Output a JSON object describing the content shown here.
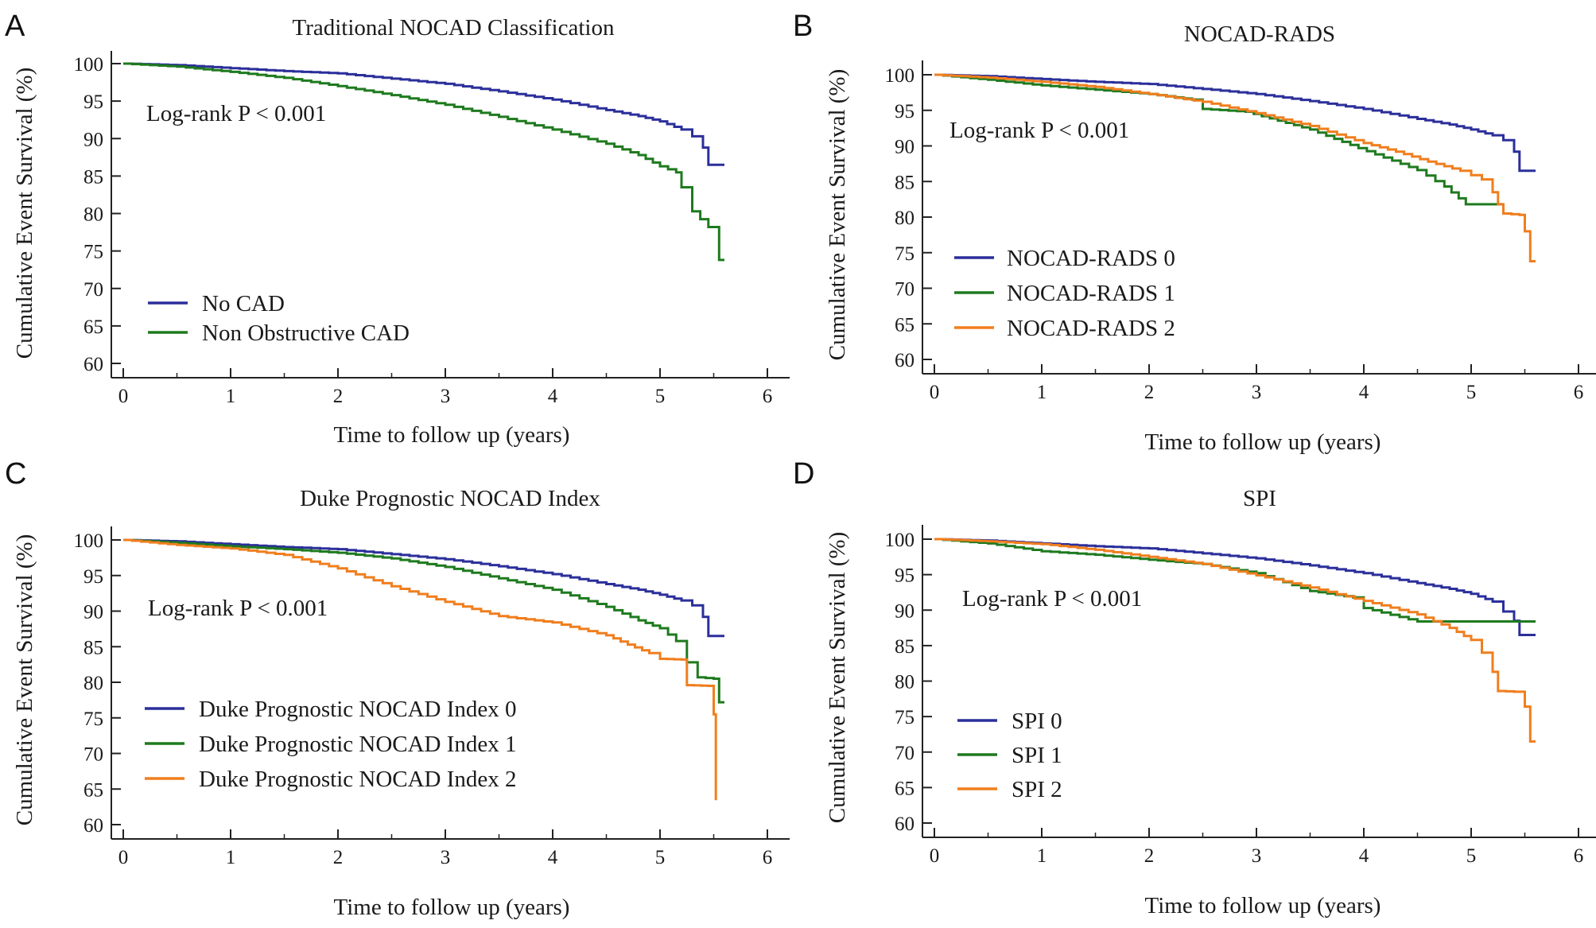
{
  "chart_data": [
    {
      "type": "line",
      "panel": "A",
      "title": "Traditional NOCAD Classification",
      "xlabel": "Time to follow up (years)",
      "ylabel": "Cumulative Event Survival (%)",
      "xlim": [
        0,
        6
      ],
      "ylim": [
        60,
        100
      ],
      "xticks": [
        0,
        1,
        2,
        3,
        4,
        5,
        6
      ],
      "yticks": [
        60,
        65,
        70,
        75,
        80,
        85,
        90,
        95,
        100
      ],
      "annotation": "Log-rank P < 0.001",
      "legend_position": "bottom-left",
      "series": [
        {
          "name": "No CAD",
          "color": "#2b2f9a",
          "x": [
            0,
            0.5,
            1,
            1.5,
            2,
            2.5,
            3,
            3.5,
            4,
            4.5,
            4.8,
            5,
            5.2,
            5.3,
            5.4,
            5.45,
            5.6
          ],
          "y": [
            100,
            99.8,
            99.4,
            99,
            98.7,
            98,
            97.3,
            96.3,
            95.2,
            93.8,
            93,
            92.3,
            91.2,
            90.3,
            88.8,
            86.5,
            86.5
          ]
        },
        {
          "name": "Non Obstructive CAD",
          "color": "#1e7a1e",
          "x": [
            0,
            0.5,
            1,
            1.5,
            2,
            2.5,
            3,
            3.5,
            4,
            4.5,
            4.8,
            5,
            5.15,
            5.2,
            5.3,
            5.45,
            5.55,
            5.6
          ],
          "y": [
            100,
            99.6,
            98.9,
            98.1,
            97,
            95.8,
            94.5,
            92.9,
            91.2,
            89.3,
            87.8,
            86.3,
            85.5,
            83.5,
            80.3,
            78.2,
            73.8,
            73.8
          ]
        }
      ]
    },
    {
      "type": "line",
      "panel": "B",
      "title": "NOCAD-RADS",
      "xlabel": "Time to follow up (years)",
      "ylabel": "Cumulative Event Survival (%)",
      "xlim": [
        0,
        6
      ],
      "ylim": [
        60,
        100
      ],
      "xticks": [
        0,
        1,
        2,
        3,
        4,
        5,
        6
      ],
      "yticks": [
        60,
        65,
        70,
        75,
        80,
        85,
        90,
        95,
        100
      ],
      "annotation": "Log-rank P < 0.001",
      "legend_position": "bottom-left",
      "series": [
        {
          "name": "NOCAD-RADS 0",
          "color": "#2b2f9a",
          "x": [
            0,
            0.5,
            1,
            1.5,
            2,
            2.5,
            3,
            3.5,
            4,
            4.5,
            4.8,
            5,
            5.2,
            5.3,
            5.4,
            5.45,
            5.6
          ],
          "y": [
            100,
            99.8,
            99.4,
            99,
            98.7,
            98,
            97.3,
            96.3,
            95.2,
            93.8,
            93,
            92.3,
            91.5,
            90.8,
            89.2,
            86.5,
            86.5
          ]
        },
        {
          "name": "NOCAD-RADS 1",
          "color": "#1e7a1e",
          "x": [
            0,
            0.5,
            1,
            1.5,
            2,
            2.4,
            2.5,
            2.9,
            3.5,
            3.95,
            4.5,
            4.75,
            4.95,
            5.3
          ],
          "y": [
            100,
            99.3,
            98.5,
            97.9,
            97.3,
            96.5,
            95.2,
            94.8,
            92.3,
            89.7,
            86.6,
            84.3,
            81.8,
            81.8
          ]
        },
        {
          "name": "NOCAD-RADS 2",
          "color": "#f07e1e",
          "x": [
            0,
            0.5,
            1,
            1.5,
            2,
            2.5,
            3,
            3.5,
            4,
            4.3,
            4.6,
            4.9,
            5.1,
            5.2,
            5.25,
            5.3,
            5.45,
            5.5,
            5.55,
            5.6
          ],
          "y": [
            100,
            99.6,
            99,
            98.3,
            97.3,
            96.2,
            94.6,
            92.8,
            90.4,
            89.2,
            87.8,
            86.5,
            85.3,
            83.5,
            81.8,
            80.5,
            80.3,
            78,
            73.8,
            73.8
          ]
        }
      ]
    },
    {
      "type": "line",
      "panel": "C",
      "title": "Duke Prognostic NOCAD Index",
      "xlabel": "Time to follow up (years)",
      "ylabel": "Cumulative Event Survival (%)",
      "xlim": [
        0,
        6
      ],
      "ylim": [
        60,
        100
      ],
      "xticks": [
        0,
        1,
        2,
        3,
        4,
        5,
        6
      ],
      "yticks": [
        60,
        65,
        70,
        75,
        80,
        85,
        90,
        95,
        100
      ],
      "annotation": "Log-rank P < 0.001",
      "legend_position": "bottom-left",
      "series": [
        {
          "name": "Duke Prognostic NOCAD Index 0",
          "color": "#2b2f9a",
          "x": [
            0,
            0.5,
            1,
            1.5,
            2,
            2.5,
            3,
            3.5,
            4,
            4.5,
            4.8,
            5,
            5.2,
            5.3,
            5.4,
            5.45,
            5.6
          ],
          "y": [
            100,
            99.8,
            99.4,
            99,
            98.7,
            98,
            97.3,
            96.3,
            95.2,
            93.8,
            93,
            92.3,
            91.5,
            90.8,
            89.2,
            86.5,
            86.5
          ]
        },
        {
          "name": "Duke Prognostic NOCAD Index 1",
          "color": "#1e7a1e",
          "x": [
            0,
            0.5,
            1,
            1.5,
            2,
            2.5,
            3,
            3.5,
            4,
            4.5,
            4.8,
            5,
            5.15,
            5.25,
            5.35,
            5.5,
            5.55,
            5.6
          ],
          "y": [
            100,
            99.6,
            99.1,
            98.7,
            98.2,
            97.4,
            96.2,
            94.6,
            93,
            90.6,
            88.7,
            87.6,
            85.8,
            82.8,
            80.7,
            80.5,
            77.2,
            77.2
          ]
        },
        {
          "name": "Duke Prognostic NOCAD Index 2",
          "color": "#f07e1e",
          "x": [
            0,
            0.5,
            1,
            1.5,
            2,
            2.5,
            3,
            3.5,
            4,
            4.5,
            4.7,
            4.9,
            5,
            5.2,
            5.25,
            5.45,
            5.5,
            5.52,
            5.53
          ],
          "y": [
            100,
            99.3,
            98.8,
            97.9,
            96,
            93.5,
            91.3,
            89.3,
            88.4,
            86.6,
            85.3,
            84.1,
            83.3,
            83.2,
            79.6,
            79.5,
            75.5,
            63.6,
            63.6
          ]
        }
      ]
    },
    {
      "type": "line",
      "panel": "D",
      "title": "SPI",
      "xlabel": "Time to follow up (years)",
      "ylabel": "Cumulative Event Survival (%)",
      "xlim": [
        0,
        6
      ],
      "ylim": [
        60,
        100
      ],
      "xticks": [
        0,
        1,
        2,
        3,
        4,
        5,
        6
      ],
      "yticks": [
        60,
        65,
        70,
        75,
        80,
        85,
        90,
        95,
        100
      ],
      "annotation": "Log-rank P < 0.001",
      "legend_position": "bottom-left",
      "series": [
        {
          "name": "SPI 0",
          "color": "#2b2f9a",
          "x": [
            0,
            0.5,
            1,
            1.5,
            2,
            2.5,
            3,
            3.5,
            4,
            4.5,
            4.8,
            5,
            5.2,
            5.3,
            5.4,
            5.45,
            5.6
          ],
          "y": [
            100,
            99.8,
            99.4,
            99,
            98.7,
            98,
            97.3,
            96.3,
            95.2,
            93.8,
            93,
            92.3,
            91.2,
            89.8,
            88.5,
            86.5,
            86.5
          ]
        },
        {
          "name": "SPI 1",
          "color": "#1e7a1e",
          "x": [
            0,
            0.5,
            1,
            1.5,
            2,
            2.5,
            3,
            3.5,
            3.9,
            4,
            4.5,
            5,
            5.6
          ],
          "y": [
            100,
            99.4,
            98.3,
            97.8,
            97.1,
            96.5,
            95.2,
            92.7,
            91.8,
            90.3,
            88.4,
            88.4,
            88.4
          ]
        },
        {
          "name": "SPI 2",
          "color": "#f07e1e",
          "x": [
            0,
            0.5,
            1,
            1.5,
            2,
            2.5,
            3,
            3.5,
            4,
            4.5,
            4.8,
            5,
            5.1,
            5.2,
            5.25,
            5.4,
            5.5,
            5.55,
            5.6
          ],
          "y": [
            100,
            99.7,
            99.3,
            98.5,
            97.5,
            96.5,
            94.9,
            93.2,
            91.3,
            89.4,
            87.5,
            85.8,
            84,
            81.3,
            78.6,
            78.5,
            76.4,
            71.5,
            71.5
          ]
        }
      ]
    }
  ]
}
